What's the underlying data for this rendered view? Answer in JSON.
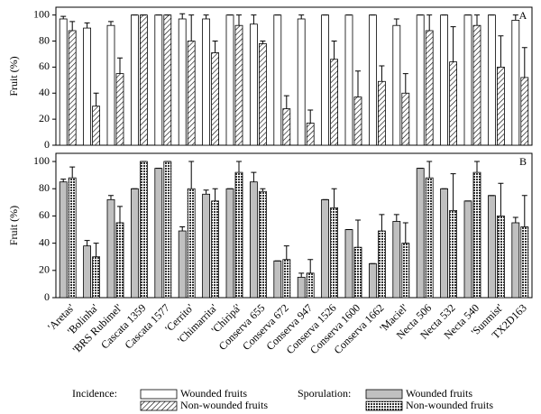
{
  "chart_data": [
    {
      "type": "bar",
      "panel_label": "A",
      "y_label": "Fruit (%)",
      "legend_title": "Incidence:",
      "categories": [
        "'Aretas'",
        "'Bolinha'",
        "'BRS Rubimel'",
        "Cascata 1359",
        "Cascata 1577",
        "'Cerrito'",
        "'Chimarrita'",
        "'Chiripá'",
        "Conserva 655",
        "Conserva 672",
        "Conserva 947",
        "Conserva 1526",
        "Conserva 1600",
        "Conserva 1662",
        "'Maciel'",
        "Necta 506",
        "Necta 532",
        "Necta 540",
        "'Sunmist'",
        "TX2D163"
      ],
      "series": [
        {
          "name": "Wounded fruits",
          "color": "#ffffff",
          "values": [
            97,
            90,
            92,
            100,
            100,
            97,
            97,
            100,
            93,
            100,
            97,
            100,
            100,
            100,
            92,
            100,
            100,
            100,
            100,
            96
          ],
          "error": [
            2,
            4,
            3,
            0,
            0,
            4,
            3,
            0,
            7,
            0,
            3,
            0,
            0,
            0,
            5,
            0,
            0,
            0,
            0,
            4
          ]
        },
        {
          "name": "Non-wounded fruits",
          "color": "#ffffff",
          "pattern": "diagonal",
          "values": [
            88,
            30,
            55,
            100,
            100,
            80,
            71,
            92,
            78,
            28,
            17,
            66,
            37,
            49,
            40,
            88,
            64,
            92,
            60,
            52
          ],
          "error": [
            7,
            10,
            12,
            0,
            0,
            20,
            9,
            8,
            2,
            10,
            10,
            14,
            20,
            12,
            15,
            12,
            27,
            8,
            24,
            23
          ]
        }
      ],
      "ylim": [
        0,
        106
      ],
      "yticks": [
        0,
        20,
        40,
        60,
        80,
        100
      ]
    },
    {
      "type": "bar",
      "panel_label": "B",
      "y_label": "Fruit (%)",
      "legend_title": "Sporulation:",
      "categories": [
        "'Aretas'",
        "'Bolinha'",
        "'BRS Rubimel'",
        "Cascata 1359",
        "Cascata 1577",
        "'Cerrito'",
        "'Chimarrita'",
        "'Chiripá'",
        "Conserva 655",
        "Conserva 672",
        "Conserva 947",
        "Conserva 1526",
        "Conserva 1600",
        "Conserva 1662",
        "'Maciel'",
        "Necta 506",
        "Necta 532",
        "Necta 540",
        "'Sunmist'",
        "TX2D163"
      ],
      "series": [
        {
          "name": "Wounded fruits",
          "color": "#c0c0c0",
          "values": [
            85,
            38,
            72,
            80,
            95,
            49,
            76,
            80,
            85,
            27,
            15,
            72,
            50,
            25,
            56,
            95,
            80,
            71,
            75,
            55
          ],
          "error": [
            2,
            4,
            3,
            0,
            0,
            3,
            3,
            0,
            7,
            0,
            3,
            0,
            0,
            0,
            5,
            0,
            0,
            0,
            0,
            4
          ]
        },
        {
          "name": "Non-wounded fruits",
          "color": "#808080",
          "pattern": "dots",
          "values": [
            88,
            30,
            55,
            100,
            100,
            80,
            71,
            92,
            78,
            28,
            18,
            66,
            37,
            49,
            40,
            88,
            64,
            92,
            60,
            52
          ],
          "error": [
            8,
            10,
            12,
            0,
            0,
            20,
            9,
            8,
            2,
            10,
            10,
            14,
            20,
            12,
            15,
            12,
            27,
            8,
            24,
            23
          ]
        }
      ],
      "ylim": [
        0,
        106
      ],
      "yticks": [
        0,
        20,
        40,
        60,
        80,
        100
      ]
    }
  ]
}
